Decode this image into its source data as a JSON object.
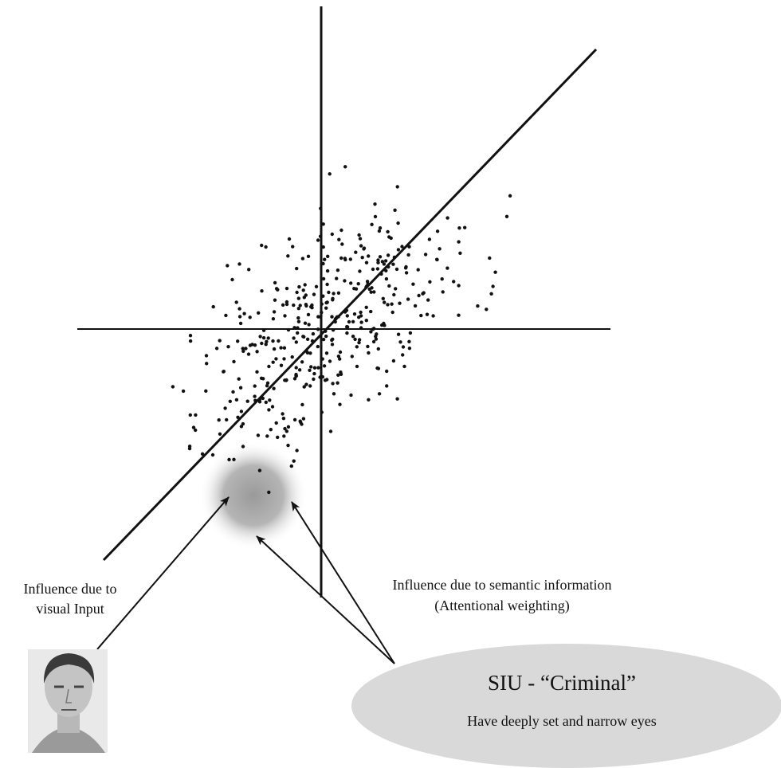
{
  "labels": {
    "visual_input": [
      "Influence due to",
      "visual Input"
    ],
    "semantic": [
      "Influence due to semantic information",
      "(Attentional weighting)"
    ]
  },
  "siu": {
    "title": "SIU - “Criminal”",
    "description": "Have deeply set and narrow eyes"
  }
}
